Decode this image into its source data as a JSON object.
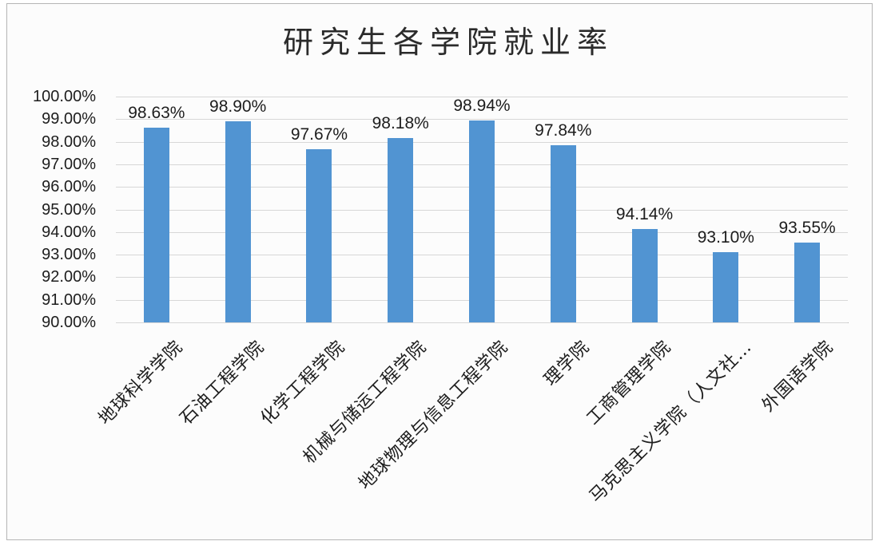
{
  "chart_data": {
    "type": "bar",
    "title": "研究生各学院就业率",
    "categories": [
      "地球科学学院",
      "石油工程学院",
      "化学工程学院",
      "机械与储运工程学院",
      "地球物理与信息工程学院",
      "理学院",
      "工商管理学院",
      "马克思主义学院（人文社…",
      "外国语学院"
    ],
    "values": [
      98.63,
      98.9,
      97.67,
      98.18,
      98.94,
      97.84,
      94.14,
      93.1,
      93.55
    ],
    "value_labels": [
      "98.63%",
      "98.90%",
      "97.67%",
      "98.18%",
      "98.94%",
      "97.84%",
      "94.14%",
      "93.10%",
      "93.55%"
    ],
    "xlabel": "",
    "ylabel": "",
    "ylim": [
      90,
      100
    ],
    "yticks": [
      {
        "value": 100,
        "label": "100.00%"
      },
      {
        "value": 99,
        "label": "99.00%"
      },
      {
        "value": 98,
        "label": "98.00%"
      },
      {
        "value": 97,
        "label": "97.00%"
      },
      {
        "value": 96,
        "label": "96.00%"
      },
      {
        "value": 95,
        "label": "95.00%"
      },
      {
        "value": 94,
        "label": "94.00%"
      },
      {
        "value": 93,
        "label": "93.00%"
      },
      {
        "value": 92,
        "label": "92.00%"
      },
      {
        "value": 91,
        "label": "91.00%"
      },
      {
        "value": 90,
        "label": "90.00%"
      }
    ],
    "grid": "horizontal",
    "legend": "none",
    "colors": {
      "bar": "#5194d2",
      "gridline": "#d7d7d7",
      "axis_line": "#b9b9b9",
      "text": "#1d1d1d",
      "border": "#b5b5b5"
    }
  }
}
